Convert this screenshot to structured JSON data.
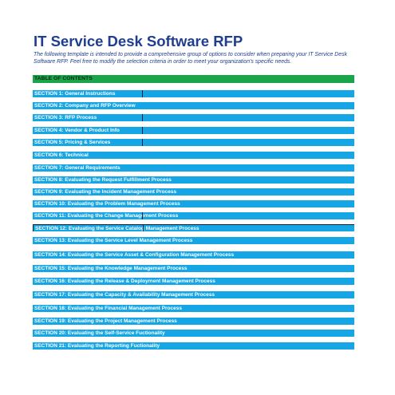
{
  "document": {
    "title": "IT Service Desk Software RFP",
    "intro": "The following template is intended to provide a comprehensive group of options to consider when preparing your IT Service Desk Software RFP. Feel free to modify the selection criteria in order to meet your organization's specific needs.",
    "toc_header": "TABLE OF CONTENTS",
    "sections": [
      "SECTION 1: General Instructions",
      "SECTION 2: Company and RFP Overview",
      "SECTION 3: RFP Process",
      "SECTION 4: Vendor & Product Info",
      "SECTION 5: Pricing & Services",
      "SECTION 6: Technical",
      "SECTION 7: General Requirements",
      "SECTION 8: Evaluating the Request Fulfillment Process",
      "SECTION 9: Evaluating the Incident Management Process",
      "SECTION 10: Evaluating the Problem Management Process",
      "SECTION 11: Evaluating the Change Management Process",
      "SECTION 12: Evaluating the Service Catalog Management Process",
      "SECTION 13: Evaluating the Service Level Management Process",
      "SECTION 14: Evaluating the Service Asset & Configuration Management Process",
      "SECTION 15: Evaluating the Knowledge Management Process",
      "SECTION 16: Evaluating the Release & Deployment Management Process",
      "SECTION 17: Evaluating the Capacity & Availability Management Process",
      "SECTION 18: Evaluating the Financial Management Process",
      "SECTION 19: Evaluating the Project Management Process",
      "SECTION 20: Evaluating the Self-Service Fuctionality",
      "SECTION 21: Evaluating the Reporting Fuctionality"
    ]
  }
}
